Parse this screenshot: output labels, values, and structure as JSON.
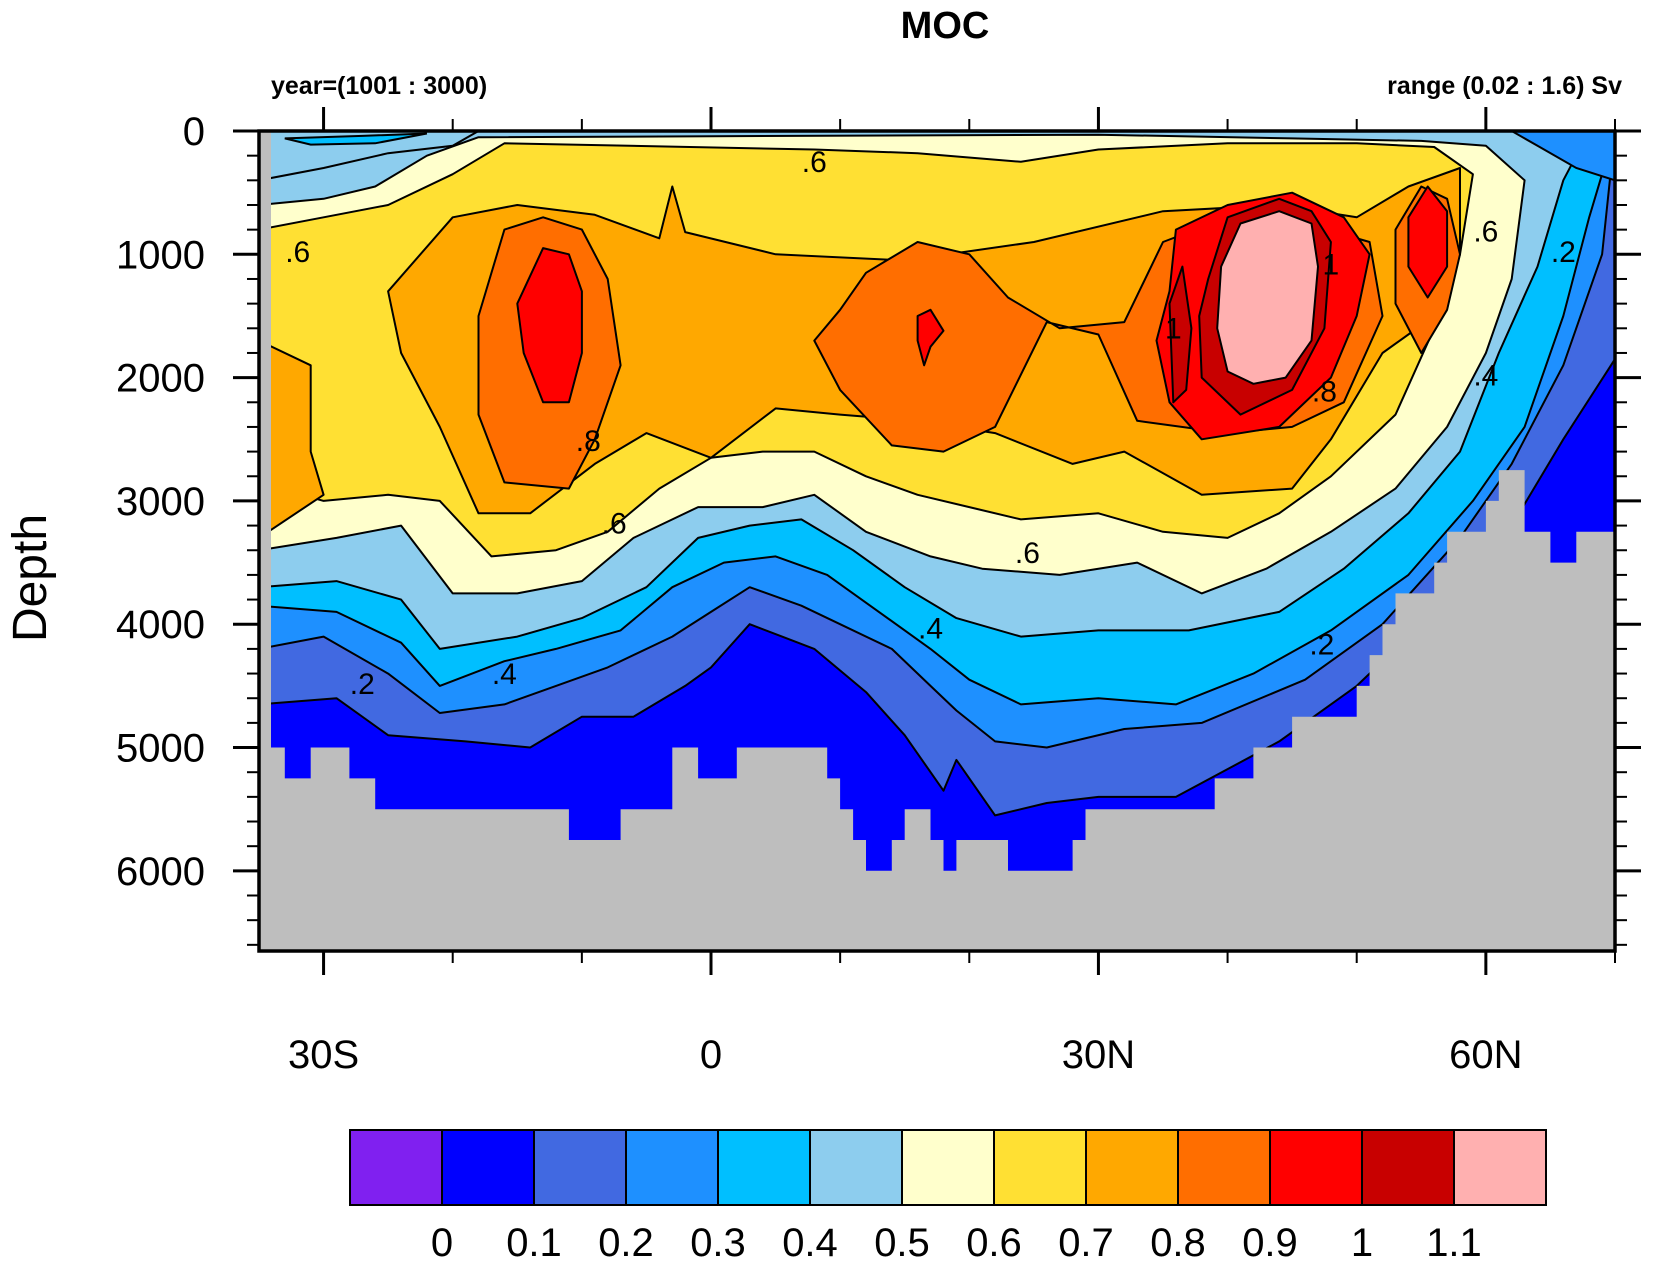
{
  "chart_data": {
    "type": "heatmap",
    "subtype": "filled-contour",
    "title": "MOC",
    "left_string": "year=(1001 : 3000)",
    "right_string": "range (0.02 : 1.6) Sv",
    "xlabel": "",
    "ylabel": "Depth",
    "units": "Sv",
    "xlim": [
      -35,
      70
    ],
    "ylim": [
      6650,
      0
    ],
    "x_ticks": [
      {
        "value": -30,
        "label": "30S"
      },
      {
        "value": 0,
        "label": "0"
      },
      {
        "value": 30,
        "label": "30N"
      },
      {
        "value": 60,
        "label": "60N"
      }
    ],
    "x_minor_ticks": [
      -20,
      -10,
      10,
      20,
      40,
      50,
      70
    ],
    "y_ticks": [
      {
        "value": 0,
        "label": "0"
      },
      {
        "value": 1000,
        "label": "1000"
      },
      {
        "value": 2000,
        "label": "2000"
      },
      {
        "value": 3000,
        "label": "3000"
      },
      {
        "value": 4000,
        "label": "4000"
      },
      {
        "value": 5000,
        "label": "5000"
      },
      {
        "value": 6000,
        "label": "6000"
      }
    ],
    "contour_levels": [
      0,
      0.1,
      0.2,
      0.3,
      0.4,
      0.5,
      0.6,
      0.7,
      0.8,
      0.9,
      1,
      1.1
    ],
    "colorbar": {
      "labels": [
        "0",
        "0.1",
        "0.2",
        "0.3",
        "0.4",
        "0.5",
        "0.6",
        "0.7",
        "0.8",
        "0.9",
        "1",
        "1.1"
      ],
      "colors": [
        "#8020F0",
        "#0000FF",
        "#4169E1",
        "#1E90FF",
        "#00BFFF",
        "#8DCDEE",
        "#FFFFCC",
        "#FFE033",
        "#FFA800",
        "#FF6E00",
        "#FF0000",
        "#C80000",
        "#FFB0B0"
      ],
      "orientation": "horizontal",
      "placement": "bottom"
    },
    "land_color": "#BEBEBE",
    "contour_labels": [
      {
        "text": ".6",
        "lat": -32,
        "depth": 1000
      },
      {
        "text": ".6",
        "lat": 8,
        "depth": 270
      },
      {
        "text": ".8",
        "lat": -9.5,
        "depth": 2530
      },
      {
        "text": ".6",
        "lat": -7.5,
        "depth": 3200
      },
      {
        "text": ".4",
        "lat": -16,
        "depth": 4420
      },
      {
        "text": ".2",
        "lat": -27,
        "depth": 4500
      },
      {
        "text": ".6",
        "lat": 24.5,
        "depth": 3440
      },
      {
        "text": ".4",
        "lat": 17,
        "depth": 4050
      },
      {
        "text": "1",
        "lat": 35.8,
        "depth": 1620
      },
      {
        "text": "1",
        "lat": 48,
        "depth": 1100
      },
      {
        "text": ".8",
        "lat": 47.5,
        "depth": 2130
      },
      {
        "text": ".2",
        "lat": 47.3,
        "depth": 4180
      },
      {
        "text": ".6",
        "lat": 60,
        "depth": 830
      },
      {
        "text": ".4",
        "lat": 60,
        "depth": 2000
      },
      {
        "text": ".2",
        "lat": 66,
        "depth": 1000
      }
    ],
    "features": [
      {
        "name": "southern-core",
        "lat": -14,
        "depth": 1600,
        "value_min": 0.9
      },
      {
        "name": "mid-core",
        "lat": 17,
        "depth": 1650,
        "value_min": 0.9
      },
      {
        "name": "north-atlantic-core",
        "lat": 42,
        "depth": 1400,
        "value_min": 1.1
      },
      {
        "name": "subpolar-core",
        "lat": 55.5,
        "depth": 850,
        "value_min": 0.9
      }
    ]
  }
}
